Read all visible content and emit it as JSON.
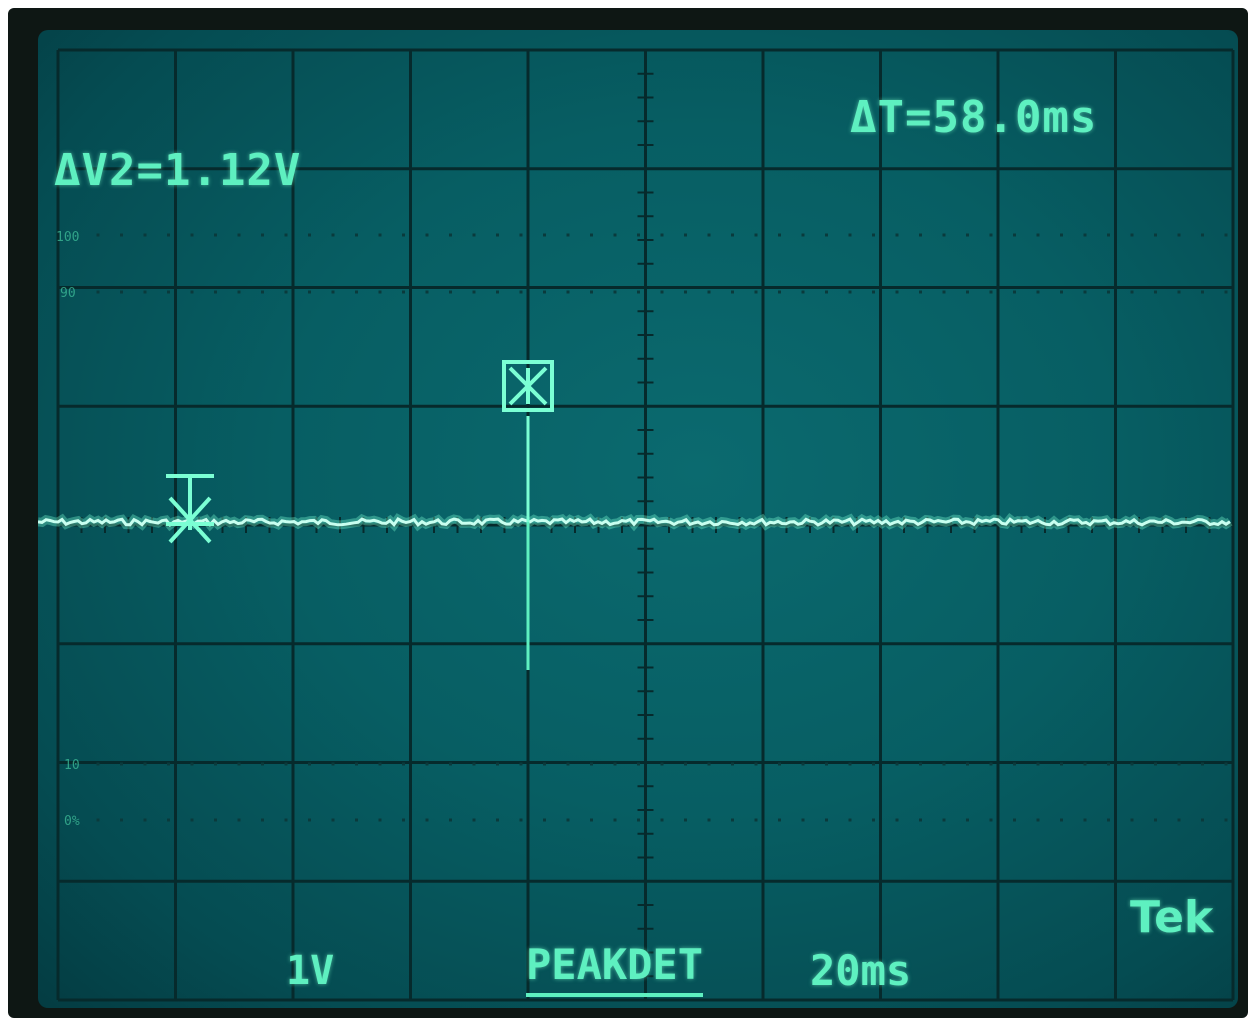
{
  "readouts": {
    "delta_v": "ΔV2=1.12V",
    "delta_t": "ΔT=58.0ms",
    "volts_per_div": "1V",
    "acquisition_mode": "PEAKDET",
    "time_per_div": "20ms",
    "brand": "Tek"
  },
  "graticule_labels": {
    "pct_100": "100",
    "pct_90": "90",
    "pct_10": "10",
    "pct_0": "0%"
  },
  "colors": {
    "screen": "#075e63",
    "trace": "#5ef0c0",
    "grid": "#062a2c"
  },
  "icons": {
    "cursor_marker": "asterisk-cursor-icon",
    "trigger_marker": "boxed-x-trigger-icon"
  }
}
